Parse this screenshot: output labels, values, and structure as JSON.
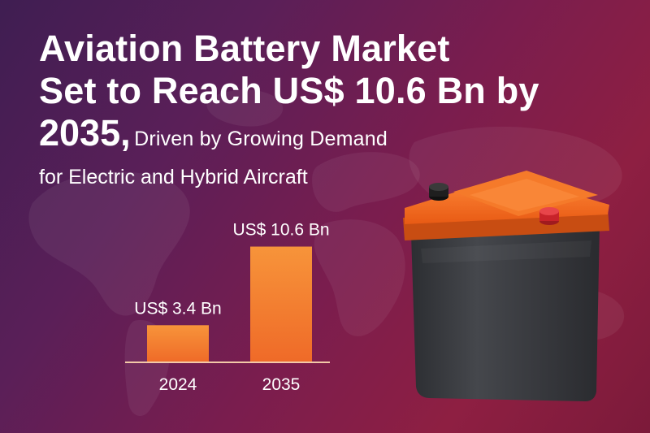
{
  "headline": {
    "line1": "Aviation Battery Market",
    "line2": "Set to Reach US$ 10.6 Bn by",
    "line3_year": "2035,",
    "line3_rest": "Driven by Growing Demand",
    "line4": "for Electric and Hybrid Aircraft"
  },
  "colors": {
    "bar_top": "#f7943a",
    "bar_bottom": "#ef6a28",
    "battery_lid": "#f26b1f",
    "battery_body": "#3a3c40",
    "terminal_negative": "#222222",
    "terminal_positive": "#d8262c"
  },
  "chart_data": {
    "type": "bar",
    "categories": [
      "2024",
      "2035"
    ],
    "values": [
      3.4,
      10.6
    ],
    "data_labels": [
      "US$ 3.4 Bn",
      "US$ 10.6 Bn"
    ],
    "title": "",
    "xlabel": "",
    "ylabel": "",
    "ylim": [
      0,
      12.5
    ],
    "grid": false
  },
  "illustration": {
    "icons": [
      "world-map-icon",
      "battery-icon"
    ]
  }
}
